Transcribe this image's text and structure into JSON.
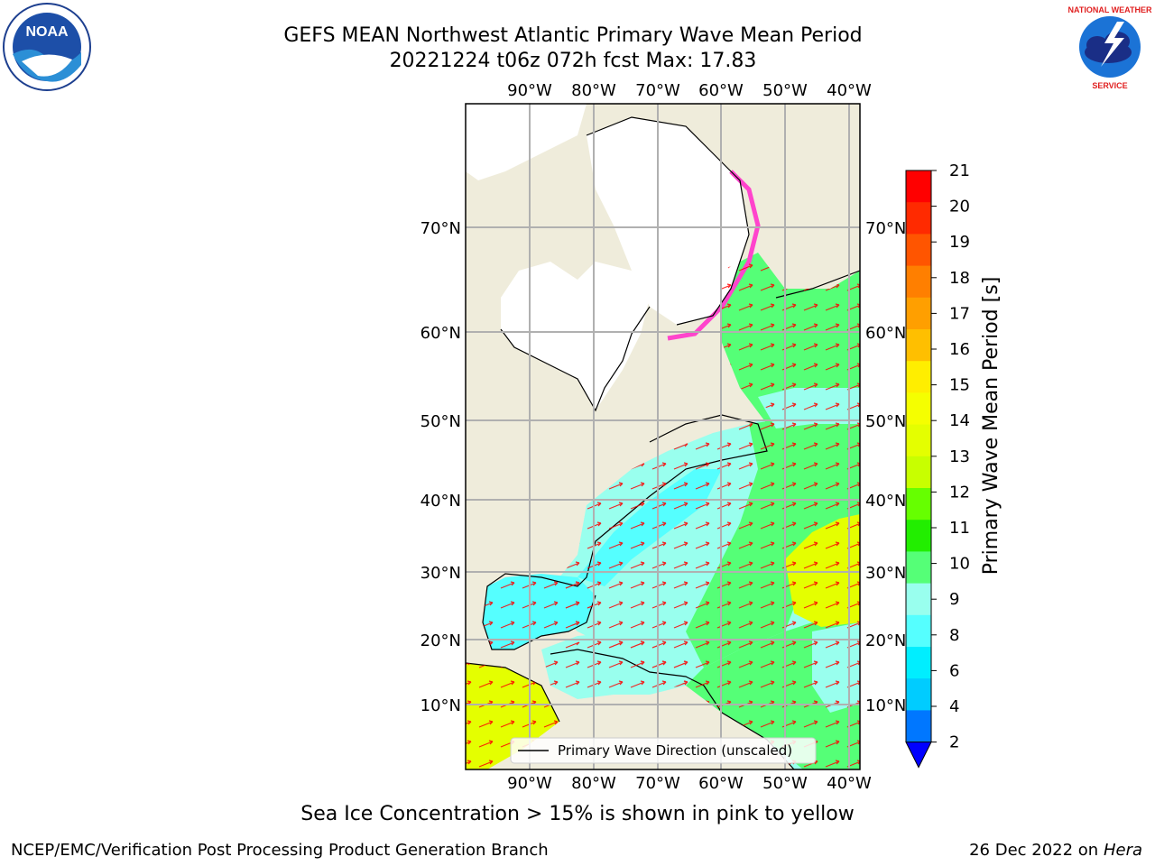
{
  "header": {
    "title_line1": "GEFS MEAN Northwest Atlantic Primary Wave Mean Period",
    "title_line2": "20221224 t06z 072h fcst   Max: 17.83"
  },
  "logos": {
    "left": "NOAA",
    "right": "NATIONAL WEATHER SERVICE"
  },
  "map": {
    "lon_labels": [
      "90°W",
      "80°W",
      "70°W",
      "60°W",
      "50°W",
      "40°W"
    ],
    "lat_labels": [
      "70°N",
      "60°N",
      "50°N",
      "40°N",
      "30°N",
      "20°N",
      "10°N"
    ],
    "legend_label": "Primary Wave Direction (unscaled)",
    "colors": {
      "land": "#efecdb",
      "ice": "#ffffff",
      "arrows": "#ff0000",
      "grid": "#b0b0b0"
    }
  },
  "colorbar": {
    "label": "Primary Wave Mean Period [s]",
    "ticks": [
      "21",
      "20",
      "19",
      "18",
      "17",
      "16",
      "15",
      "14",
      "13",
      "12",
      "11",
      "10",
      "9",
      "8",
      "6",
      "4",
      "2"
    ],
    "colors": [
      "#ff0000",
      "#ff2a00",
      "#ff5500",
      "#ff7f00",
      "#ff9f00",
      "#ffbf00",
      "#ffee00",
      "#f5ff00",
      "#e4ff00",
      "#c8ff00",
      "#66ff00",
      "#22ee00",
      "#55ff77",
      "#99ffee",
      "#55ffff",
      "#00eeff",
      "#00ccff",
      "#0077ff"
    ],
    "extend_color": "#0000ff"
  },
  "footer": {
    "ice_note": "Sea Ice Concentration > 15% is shown in pink to yellow",
    "credit": "NCEP/EMC/Verification Post Processing Product Generation Branch",
    "date": "26 Dec 2022 on",
    "machine": "Hera"
  }
}
